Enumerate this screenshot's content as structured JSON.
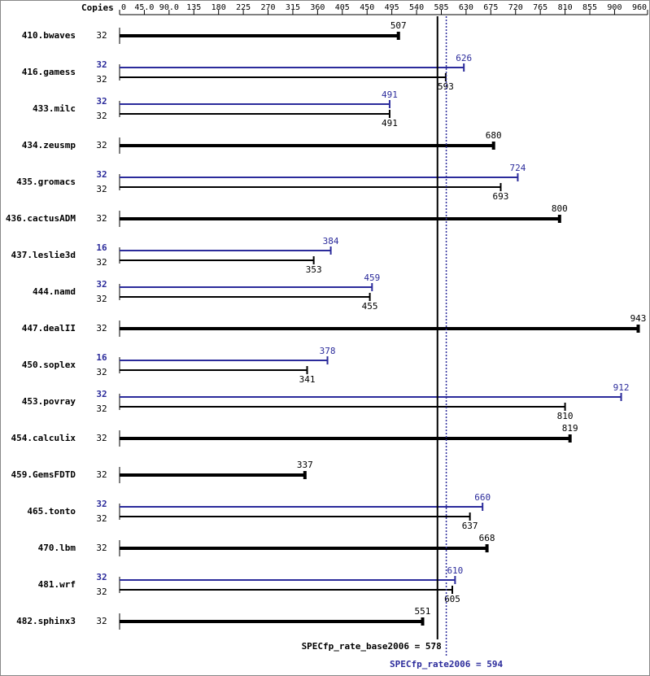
{
  "chart_data": {
    "type": "bar",
    "orientation": "horizontal",
    "copies_header": "Copies",
    "categories": [
      "410.bwaves",
      "416.gamess",
      "433.milc",
      "434.zeusmp",
      "435.gromacs",
      "436.cactusADM",
      "437.leslie3d",
      "444.namd",
      "447.dealII",
      "450.soplex",
      "453.povray",
      "454.calculix",
      "459.GemsFDTD",
      "465.tonto",
      "470.lbm",
      "481.wrf",
      "482.sphinx3"
    ],
    "series": [
      {
        "color": "#000000",
        "copies": [
          "32",
          "32",
          "32",
          "32",
          "32",
          "32",
          "32",
          "32",
          "32",
          "32",
          "32",
          "32",
          "32",
          "32",
          "32",
          "32",
          "32"
        ],
        "values": [
          507,
          593,
          491,
          680,
          693,
          800,
          353,
          455,
          943,
          341,
          810,
          819,
          337,
          637,
          668,
          605,
          551
        ]
      },
      {
        "color": "#2b2b9b",
        "copies": [
          null,
          "32",
          "32",
          null,
          "32",
          null,
          "16",
          "32",
          null,
          "16",
          "32",
          null,
          null,
          "32",
          null,
          "32",
          null
        ],
        "values": [
          null,
          626,
          491,
          null,
          724,
          null,
          384,
          459,
          null,
          378,
          912,
          null,
          null,
          660,
          null,
          610,
          null
        ]
      }
    ],
    "xlim": [
      0,
      960
    ],
    "xticks": [
      0,
      {
        "value": 45,
        "label": "45.0"
      },
      {
        "value": 90,
        "label": "90.0"
      },
      135,
      180,
      225,
      270,
      315,
      360,
      405,
      450,
      495,
      540,
      585,
      630,
      675,
      720,
      765,
      810,
      855,
      900,
      960
    ],
    "reference_lines": [
      {
        "value": 578,
        "label": "SPECfp_rate_base2006 = 578",
        "color": "#000000",
        "style": "solid"
      },
      {
        "value": 594,
        "label": "SPECfp_rate2006 = 594",
        "color": "#2b2b9b",
        "style": "dotted"
      }
    ]
  }
}
